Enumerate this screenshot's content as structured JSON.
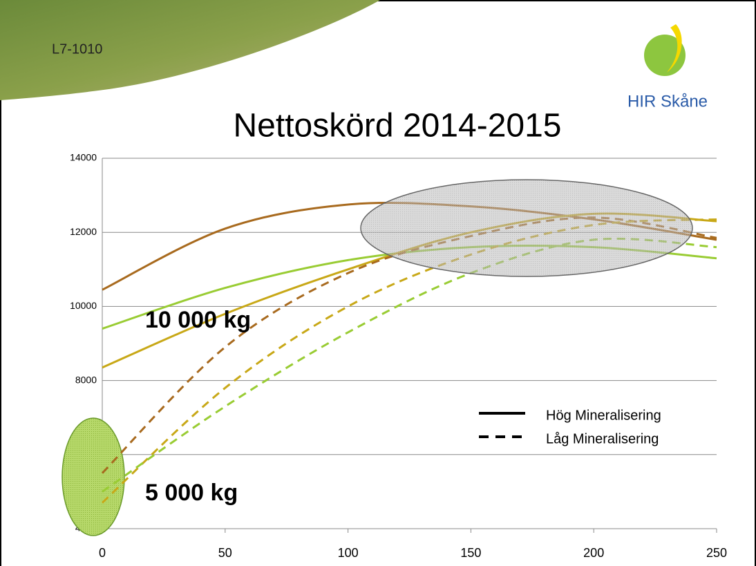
{
  "slide_code": "L7-1010",
  "logo_text": "HIR Skåne",
  "chart_data": {
    "type": "line",
    "title": "Nettoskörd 2014-2015",
    "x": [
      0,
      50,
      100,
      150,
      200,
      250
    ],
    "series": [
      {
        "color": "#a86a1e",
        "dashed": false,
        "values": [
          10450,
          12100,
          12750,
          12700,
          12350,
          11800
        ]
      },
      {
        "color": "#99cc33",
        "dashed": false,
        "values": [
          9400,
          10500,
          11250,
          11600,
          11600,
          11300
        ]
      },
      {
        "color": "#c8a817",
        "dashed": false,
        "values": [
          8350,
          9800,
          11000,
          12000,
          12500,
          12300
        ]
      },
      {
        "color": "#a86a1e",
        "dashed": true,
        "values": [
          5500,
          8900,
          10900,
          11900,
          12400,
          11850
        ]
      },
      {
        "color": "#c8a817",
        "dashed": true,
        "values": [
          4700,
          7800,
          10000,
          11400,
          12200,
          12350
        ]
      },
      {
        "color": "#99cc33",
        "dashed": true,
        "values": [
          5000,
          7300,
          9300,
          10900,
          11800,
          11600
        ]
      }
    ],
    "xlim": [
      0,
      250
    ],
    "xticks": [
      0,
      50,
      100,
      150,
      200,
      250
    ],
    "ylim": [
      4000,
      14000
    ],
    "yticks": [
      4000,
      6000,
      8000,
      10000,
      12000,
      14000
    ],
    "grid": true,
    "legend": [
      {
        "label": "Hög Mineralisering",
        "dashed": false
      },
      {
        "label": "Låg Mineralisering",
        "dashed": true
      }
    ],
    "annotations": [
      "10 000 kg",
      "5 000 kg"
    ]
  }
}
